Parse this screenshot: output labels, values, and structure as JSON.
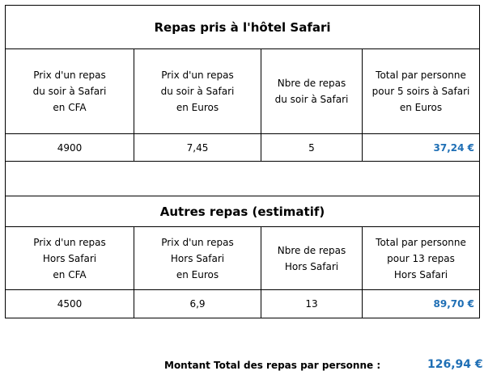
{
  "sections": [
    {
      "title": "Repas pris à l'hôtel Safari",
      "headers": [
        [
          "Prix d'un repas",
          "du soir à Safari",
          "en CFA"
        ],
        [
          "Prix d'un repas",
          "du soir à Safari",
          "en Euros"
        ],
        [
          "Nbre de repas",
          "du soir à Safari"
        ],
        [
          "Total par personne",
          "pour 5 soirs à Safari",
          "en Euros"
        ]
      ],
      "row": [
        "4900",
        "7,45",
        "5",
        "37,24 €"
      ]
    },
    {
      "title": "Autres repas (estimatif)",
      "headers": [
        [
          "Prix d'un repas",
          "Hors Safari",
          "en CFA"
        ],
        [
          "Prix d'un repas",
          "Hors Safari",
          "en Euros"
        ],
        [
          "Nbre de repas",
          "Hors Safari"
        ],
        [
          "Total par personne",
          "pour 13 repas",
          "Hors Safari"
        ]
      ],
      "row": [
        "4500",
        "6,9",
        "13",
        "89,70 €"
      ]
    }
  ],
  "total": {
    "label": "Montant Total des repas par personne :",
    "value": "126,94 €"
  }
}
